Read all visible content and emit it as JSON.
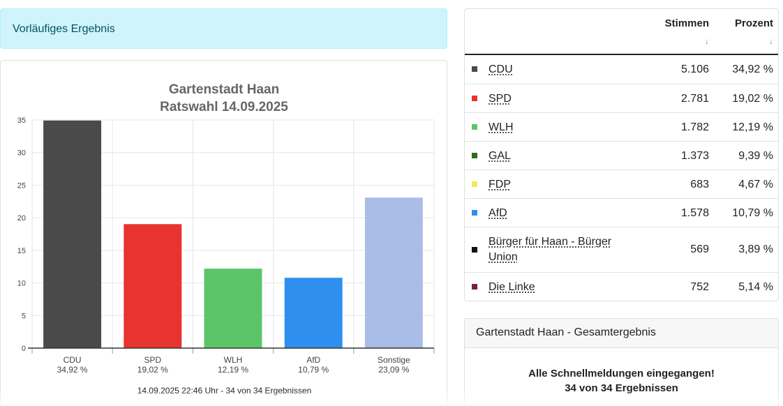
{
  "alert": {
    "text": "Vorläufiges Ergebnis"
  },
  "chart_data": {
    "type": "bar",
    "title": "Gartenstadt Haan",
    "subtitle": "Ratswahl 14.09.2025",
    "categories": [
      "CDU",
      "SPD",
      "WLH",
      "AfD",
      "Sonstige"
    ],
    "category_labels": [
      "34,92 %",
      "19,02 %",
      "12,19 %",
      "10,79 %",
      "23,09 %"
    ],
    "values": [
      34.92,
      19.02,
      12.19,
      10.79,
      23.09
    ],
    "colors": [
      "#4a4a4a",
      "#e8332f",
      "#5cc56a",
      "#2f8fef",
      "#a9bde6"
    ],
    "ylim": [
      0,
      35
    ],
    "yticks": [
      "0",
      "5",
      "10",
      "15",
      "20",
      "25",
      "30",
      "35"
    ],
    "grid": true,
    "footer": "14.09.2025 22:46 Uhr - 34 von 34 Ergebnissen"
  },
  "table": {
    "headers": {
      "votes": "Stimmen",
      "percent": "Prozent",
      "sort_arrow": "↓"
    },
    "rows": [
      {
        "party": "CDU",
        "color": "#4a4a4a",
        "votes": "5.106",
        "percent": "34,92 %"
      },
      {
        "party": "SPD",
        "color": "#e8332f",
        "votes": "2.781",
        "percent": "19,02 %"
      },
      {
        "party": "WLH",
        "color": "#5cc56a",
        "votes": "1.782",
        "percent": "12,19 %"
      },
      {
        "party": "GAL",
        "color": "#2e6b1e",
        "votes": "1.373",
        "percent": "9,39 %"
      },
      {
        "party": "FDP",
        "color": "#f2e85a",
        "votes": "683",
        "percent": "4,67 %"
      },
      {
        "party": "AfD",
        "color": "#2f8fef",
        "votes": "1.578",
        "percent": "10,79 %"
      },
      {
        "party": "Bürger für Haan - Bürger Union",
        "color": "#111111",
        "votes": "569",
        "percent": "3,89 %"
      },
      {
        "party": "Die Linke",
        "color": "#7a1f3d",
        "votes": "752",
        "percent": "5,14 %"
      }
    ]
  },
  "summary": {
    "header": "Gartenstadt Haan - Gesamtergebnis",
    "line1": "Alle Schnellmeldungen eingegangen!",
    "line2": "34 von 34 Ergebnissen"
  }
}
